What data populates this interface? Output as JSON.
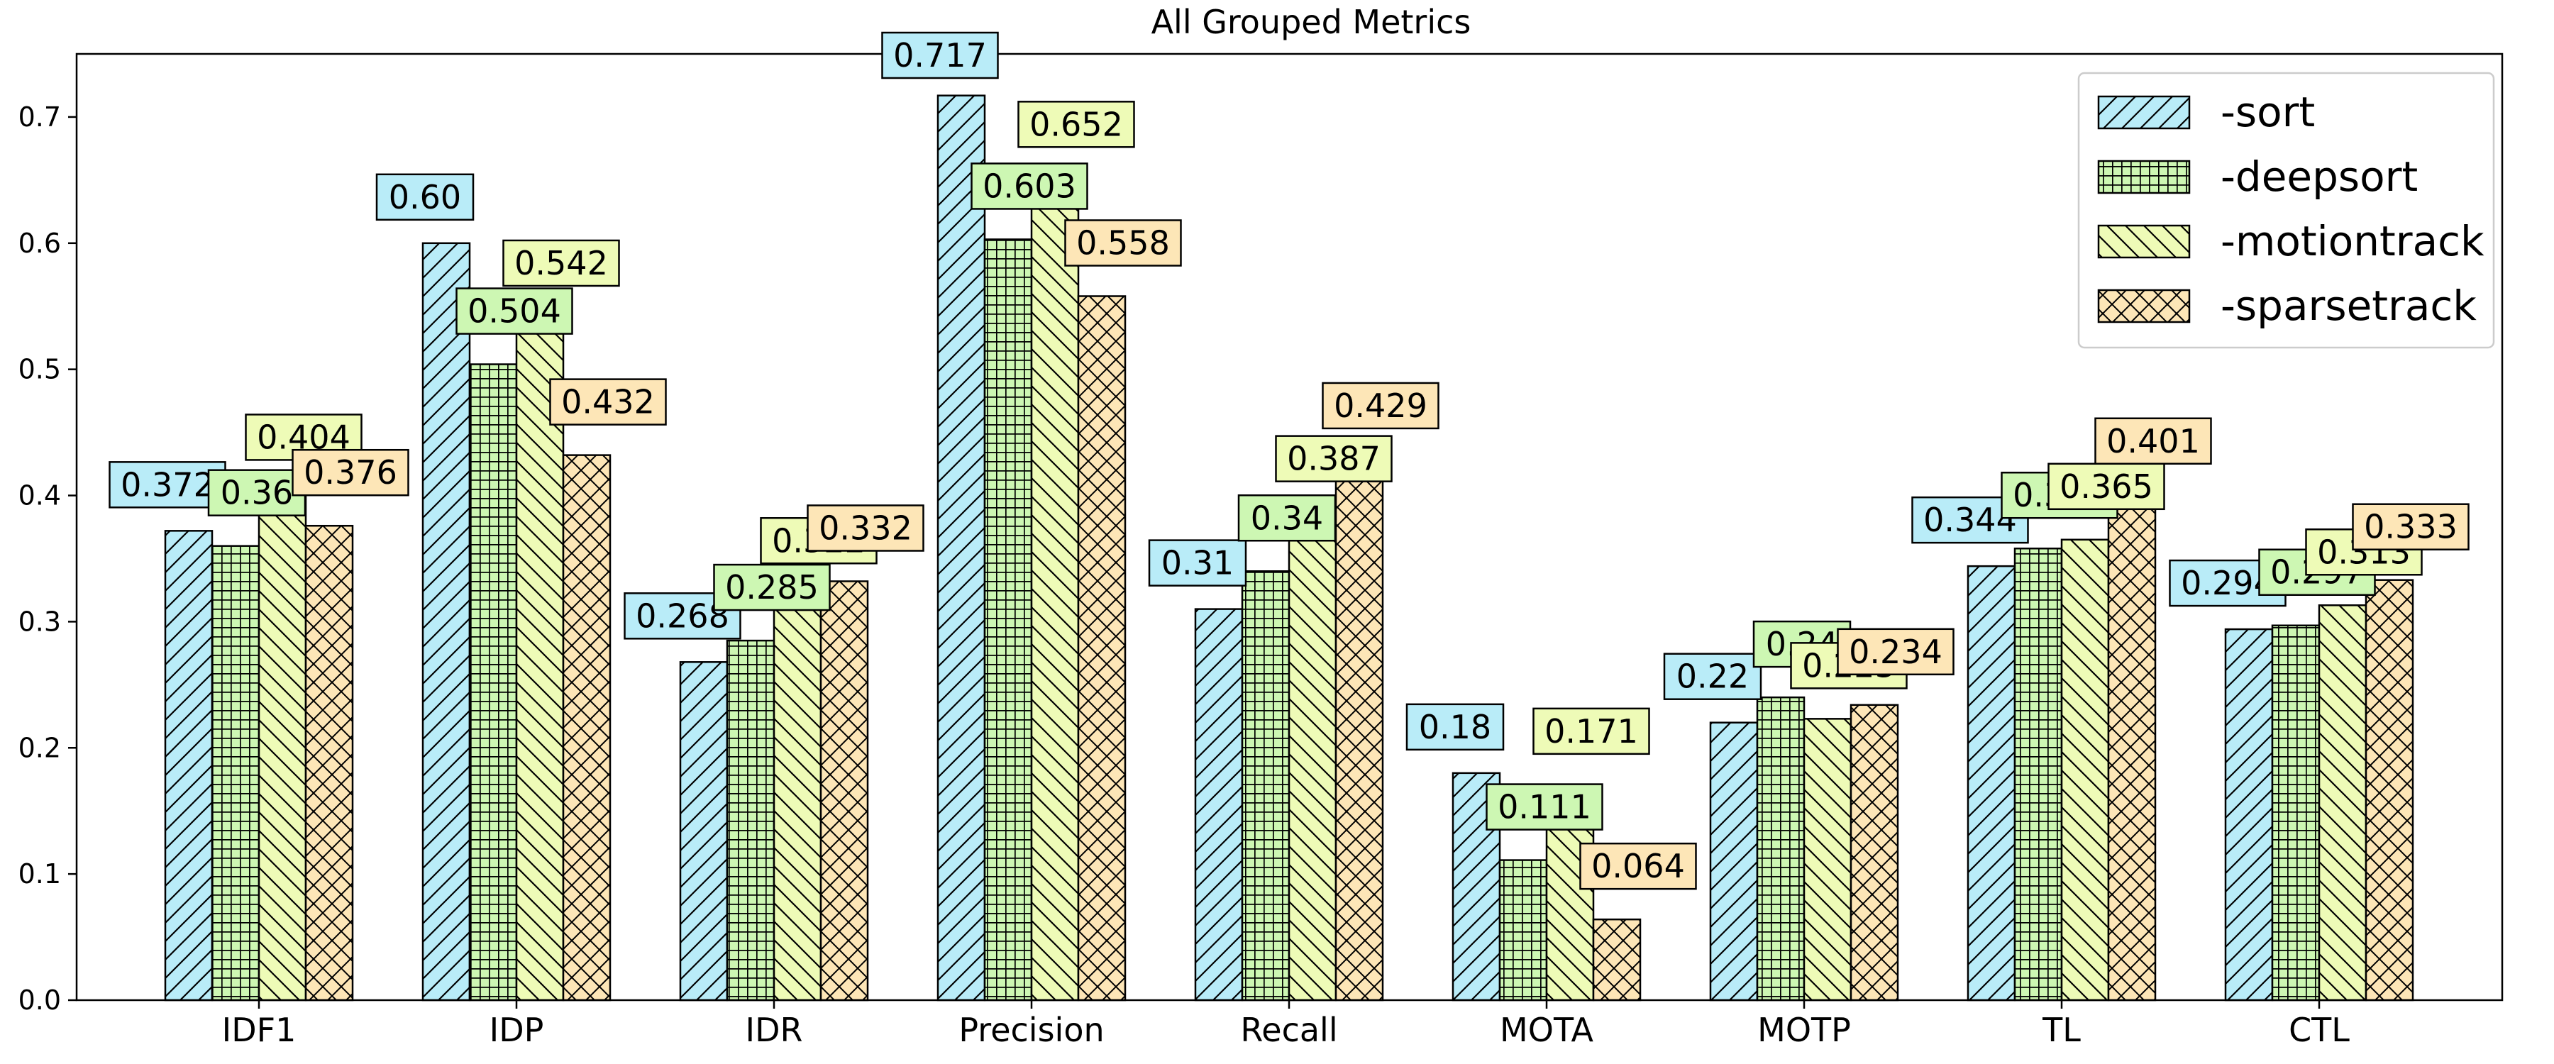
{
  "chart_data": {
    "type": "bar",
    "title": "All Grouped Metrics",
    "xlabel": "",
    "ylabel": "",
    "ylim": [
      0,
      0.75
    ],
    "yticks": [
      "0.0",
      "0.1",
      "0.2",
      "0.3",
      "0.4",
      "0.5",
      "0.6",
      "0.7"
    ],
    "grid": false,
    "legend_position": "top-right",
    "categories": [
      "IDF1",
      "IDP",
      "IDR",
      "Precision",
      "Recall",
      "MOTA",
      "MOTP",
      "TL",
      "CTL"
    ],
    "series": [
      {
        "name": "-sort",
        "color": "#b9ecf8",
        "hatch": "diagonal",
        "values": [
          0.372,
          0.6,
          0.268,
          0.717,
          0.31,
          0.18,
          0.22,
          0.344,
          0.294
        ],
        "labels": [
          "0.372",
          "0.60",
          "0.268",
          "0.717",
          "0.31",
          "0.18",
          "0.22",
          "0.344",
          "0.294"
        ]
      },
      {
        "name": "-deepsort",
        "color": "#cdf7b3",
        "hatch": "grid",
        "values": [
          0.36,
          0.504,
          0.285,
          0.603,
          0.34,
          0.111,
          0.24,
          0.358,
          0.297
        ],
        "labels": [
          "0.36",
          "0.504",
          "0.285",
          "0.603",
          "0.34",
          "0.111",
          "0.24",
          "0.358",
          "0.297"
        ]
      },
      {
        "name": "-motiontrack",
        "color": "#eefbb7",
        "hatch": "backdiagonal",
        "values": [
          0.404,
          0.542,
          0.322,
          0.652,
          0.387,
          0.171,
          0.223,
          0.365,
          0.313
        ],
        "labels": [
          "0.404",
          "0.542",
          "0.322",
          "0.652",
          "0.387",
          "0.171",
          "0.223",
          "0.365",
          "0.313"
        ]
      },
      {
        "name": "-sparsetrack",
        "color": "#fde6b7",
        "hatch": "crosshatch",
        "values": [
          0.376,
          0.432,
          0.332,
          0.558,
          0.429,
          0.064,
          0.234,
          0.401,
          0.333
        ],
        "labels": [
          "0.376",
          "0.432",
          "0.332",
          "0.558",
          "0.429",
          "0.064",
          "0.234",
          "0.401",
          "0.333"
        ]
      }
    ]
  }
}
